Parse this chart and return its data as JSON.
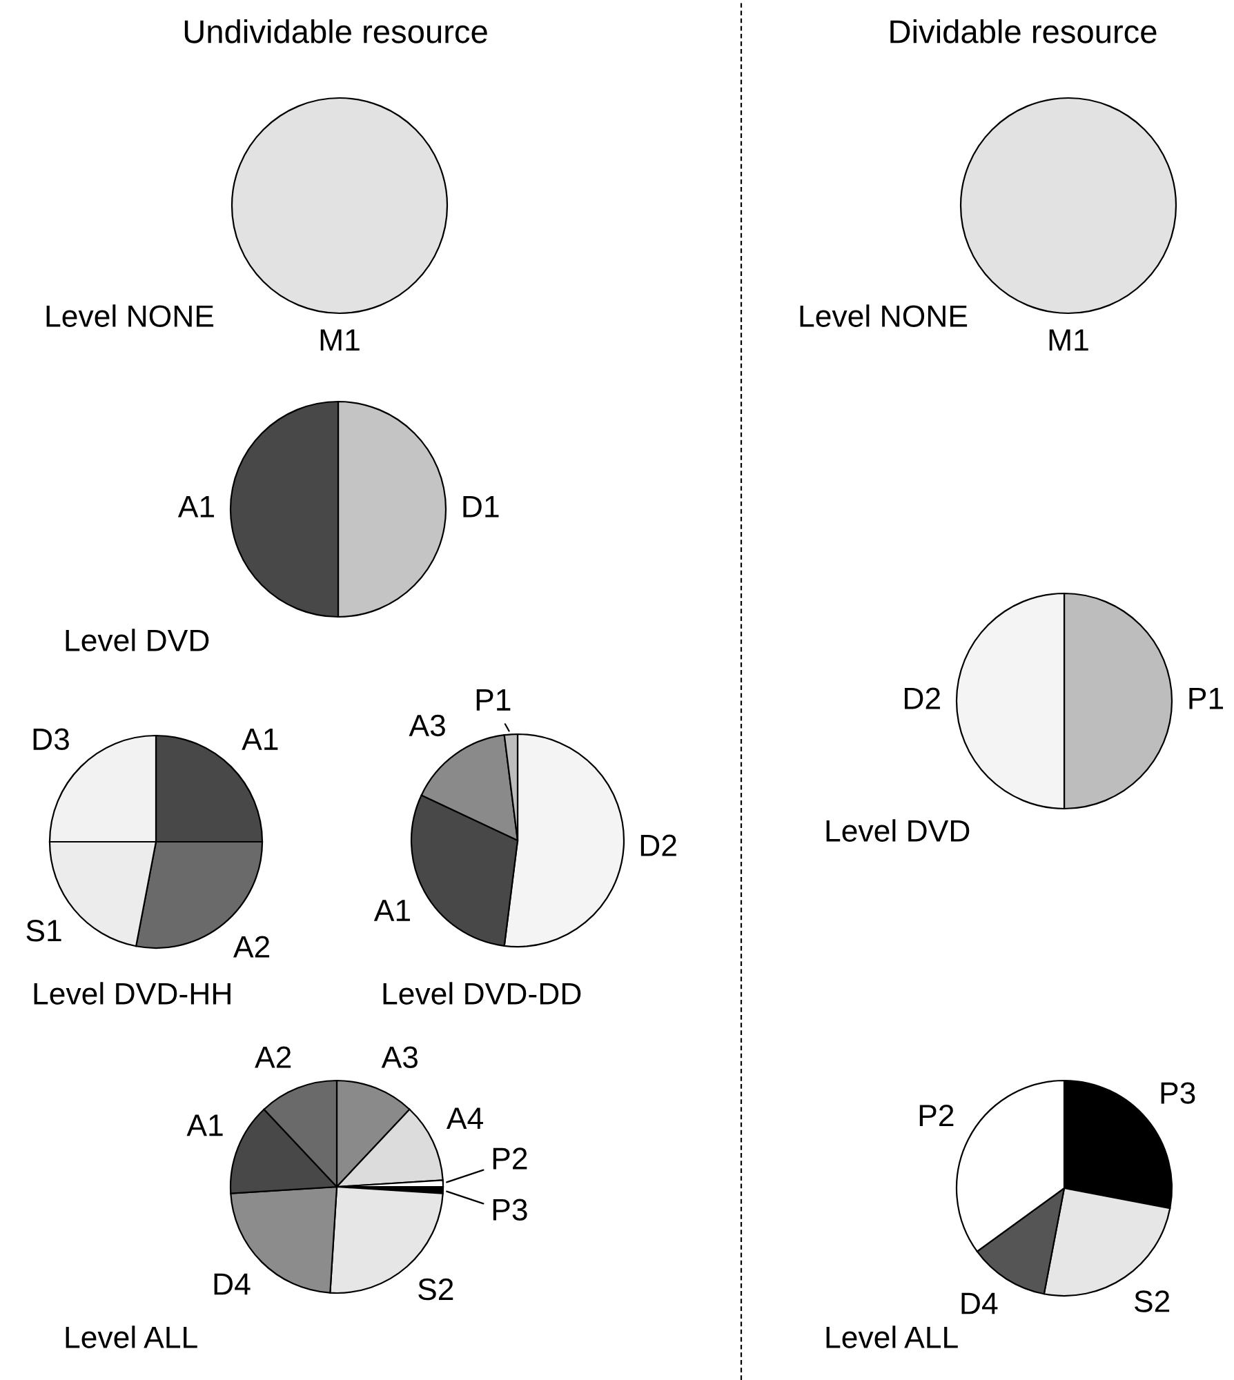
{
  "chart_data": [
    {
      "type": "pie",
      "title": "Undividable resource",
      "xlabel": "Level NONE",
      "categories": [
        "M1"
      ],
      "values": [
        100
      ],
      "colors": [
        "#e2e2e2"
      ]
    },
    {
      "type": "pie",
      "title": "Dividable resource",
      "xlabel": "Level NONE",
      "categories": [
        "M1"
      ],
      "values": [
        100
      ],
      "colors": [
        "#e2e2e2"
      ]
    },
    {
      "type": "pie",
      "xlabel": "Level DVD",
      "categories": [
        "D1",
        "A1"
      ],
      "values": [
        50,
        50
      ],
      "colors": [
        "#c4c4c4",
        "#484848"
      ]
    },
    {
      "type": "pie",
      "xlabel": "Level DVD-HH",
      "categories": [
        "A1",
        "A2",
        "S1",
        "D3"
      ],
      "values": [
        25,
        28,
        22,
        25
      ],
      "colors": [
        "#484848",
        "#6a6a6a",
        "#ececec",
        "#f2f2f2"
      ]
    },
    {
      "type": "pie",
      "xlabel": "Level DVD-DD",
      "categories": [
        "D2",
        "A1",
        "A3",
        "P1"
      ],
      "values": [
        52,
        30,
        16,
        2
      ],
      "colors": [
        "#f4f4f4",
        "#484848",
        "#8a8a8a",
        "#bdbdbd"
      ]
    },
    {
      "type": "pie",
      "xlabel": "Level DVD",
      "categories": [
        "P1",
        "D2"
      ],
      "values": [
        50,
        50
      ],
      "colors": [
        "#bdbdbd",
        "#f4f4f4"
      ]
    },
    {
      "type": "pie",
      "xlabel": "Level ALL",
      "categories": [
        "A3",
        "A4",
        "P2",
        "P3",
        "S2",
        "D4",
        "A1",
        "A2"
      ],
      "values": [
        12,
        12,
        1,
        1,
        25,
        23,
        14,
        12
      ],
      "colors": [
        "#8a8a8a",
        "#dcdcdc",
        "#ffffff",
        "#000000",
        "#e6e6e6",
        "#8c8c8c",
        "#484848",
        "#6a6a6a"
      ]
    },
    {
      "type": "pie",
      "xlabel": "Level ALL",
      "categories": [
        "P3",
        "S2",
        "D4",
        "P2"
      ],
      "values": [
        28,
        25,
        12,
        35
      ],
      "colors": [
        "#000000",
        "#e6e6e6",
        "#555555",
        "#ffffff"
      ]
    }
  ]
}
